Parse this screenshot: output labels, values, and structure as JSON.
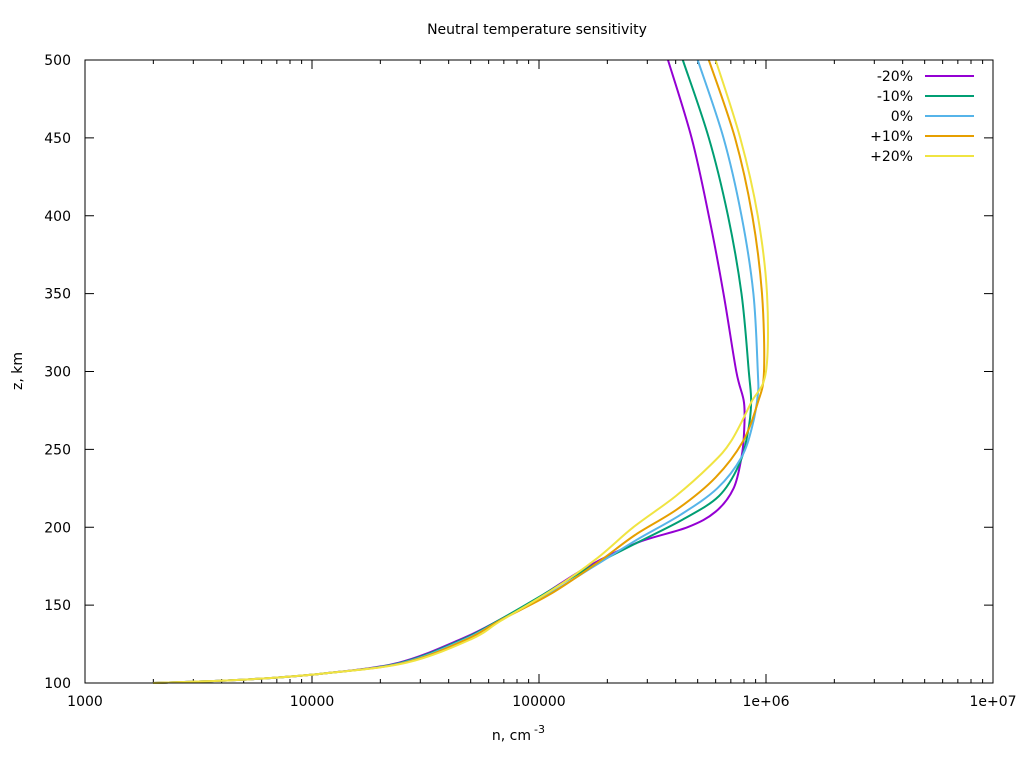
{
  "chart_data": {
    "type": "line",
    "title": "Neutral temperature sensitivity",
    "xlabel": "n, cm",
    "xlabel_superscript": "-3",
    "ylabel": "z, km",
    "x_scale": "log",
    "xlim": [
      1000,
      10000000
    ],
    "ylim": [
      100,
      500
    ],
    "x_ticks": [
      {
        "value": 1000,
        "label": "1000"
      },
      {
        "value": 10000,
        "label": "10000"
      },
      {
        "value": 100000,
        "label": "100000"
      },
      {
        "value": 1000000,
        "label": "1e+06"
      },
      {
        "value": 10000000,
        "label": "1e+07"
      }
    ],
    "y_ticks": [
      {
        "value": 100,
        "label": "100"
      },
      {
        "value": 150,
        "label": "150"
      },
      {
        "value": 200,
        "label": "200"
      },
      {
        "value": 250,
        "label": "250"
      },
      {
        "value": 300,
        "label": "300"
      },
      {
        "value": 350,
        "label": "350"
      },
      {
        "value": 400,
        "label": "400"
      },
      {
        "value": 450,
        "label": "450"
      },
      {
        "value": 500,
        "label": "500"
      }
    ],
    "grid": false,
    "legend_position": "top-right",
    "series": [
      {
        "name": "-20%",
        "color": "#9400d3",
        "points": [
          [
            2000,
            100
          ],
          [
            4800,
            102
          ],
          [
            11000,
            106
          ],
          [
            24000,
            113
          ],
          [
            45000,
            128
          ],
          [
            66000,
            140
          ],
          [
            100000,
            155
          ],
          [
            165000,
            175
          ],
          [
            270000,
            190
          ],
          [
            450000,
            200
          ],
          [
            600000,
            210
          ],
          [
            720000,
            225
          ],
          [
            780000,
            245
          ],
          [
            800000,
            260
          ],
          [
            800000,
            280
          ],
          [
            740000,
            300
          ],
          [
            650000,
            350
          ],
          [
            560000,
            400
          ],
          [
            470000,
            450
          ],
          [
            370000,
            500
          ]
        ]
      },
      {
        "name": "-10%",
        "color": "#009e73",
        "points": [
          [
            2000,
            100
          ],
          [
            4800,
            102
          ],
          [
            11000,
            106
          ],
          [
            24500,
            113
          ],
          [
            46000,
            128
          ],
          [
            66000,
            140
          ],
          [
            105000,
            157
          ],
          [
            170000,
            175
          ],
          [
            270000,
            190
          ],
          [
            430000,
            205
          ],
          [
            620000,
            220
          ],
          [
            760000,
            240
          ],
          [
            830000,
            260
          ],
          [
            860000,
            280
          ],
          [
            840000,
            300
          ],
          [
            780000,
            350
          ],
          [
            680000,
            400
          ],
          [
            560000,
            450
          ],
          [
            430000,
            500
          ]
        ]
      },
      {
        "name": "0%",
        "color": "#56b4e9",
        "points": [
          [
            2000,
            100
          ],
          [
            4800,
            102
          ],
          [
            11000,
            106
          ],
          [
            25000,
            113
          ],
          [
            47000,
            128
          ],
          [
            67000,
            140
          ],
          [
            110000,
            157
          ],
          [
            175000,
            175
          ],
          [
            270000,
            192
          ],
          [
            420000,
            208
          ],
          [
            610000,
            225
          ],
          [
            780000,
            245
          ],
          [
            870000,
            265
          ],
          [
            920000,
            285
          ],
          [
            920000,
            300
          ],
          [
            880000,
            350
          ],
          [
            780000,
            400
          ],
          [
            650000,
            450
          ],
          [
            500000,
            500
          ]
        ]
      },
      {
        "name": "+10%",
        "color": "#e69f00",
        "points": [
          [
            2000,
            100
          ],
          [
            4800,
            102
          ],
          [
            11000,
            106
          ],
          [
            25500,
            113
          ],
          [
            48000,
            128
          ],
          [
            67000,
            140
          ],
          [
            112000,
            157
          ],
          [
            180000,
            177
          ],
          [
            265000,
            195
          ],
          [
            410000,
            212
          ],
          [
            600000,
            232
          ],
          [
            790000,
            255
          ],
          [
            920000,
            280
          ],
          [
            980000,
            300
          ],
          [
            960000,
            350
          ],
          [
            870000,
            400
          ],
          [
            730000,
            450
          ],
          [
            560000,
            500
          ]
        ]
      },
      {
        "name": "+20%",
        "color": "#f0e442",
        "points": [
          [
            2000,
            100
          ],
          [
            4800,
            102
          ],
          [
            11000,
            106
          ],
          [
            26000,
            113
          ],
          [
            50000,
            128
          ],
          [
            68000,
            140
          ],
          [
            115000,
            160
          ],
          [
            180000,
            180
          ],
          [
            260000,
            200
          ],
          [
            400000,
            220
          ],
          [
            570000,
            240
          ],
          [
            700000,
            255
          ],
          [
            860000,
            280
          ],
          [
            1000000,
            300
          ],
          [
            1010000,
            350
          ],
          [
            920000,
            400
          ],
          [
            770000,
            450
          ],
          [
            600000,
            500
          ]
        ]
      }
    ]
  }
}
